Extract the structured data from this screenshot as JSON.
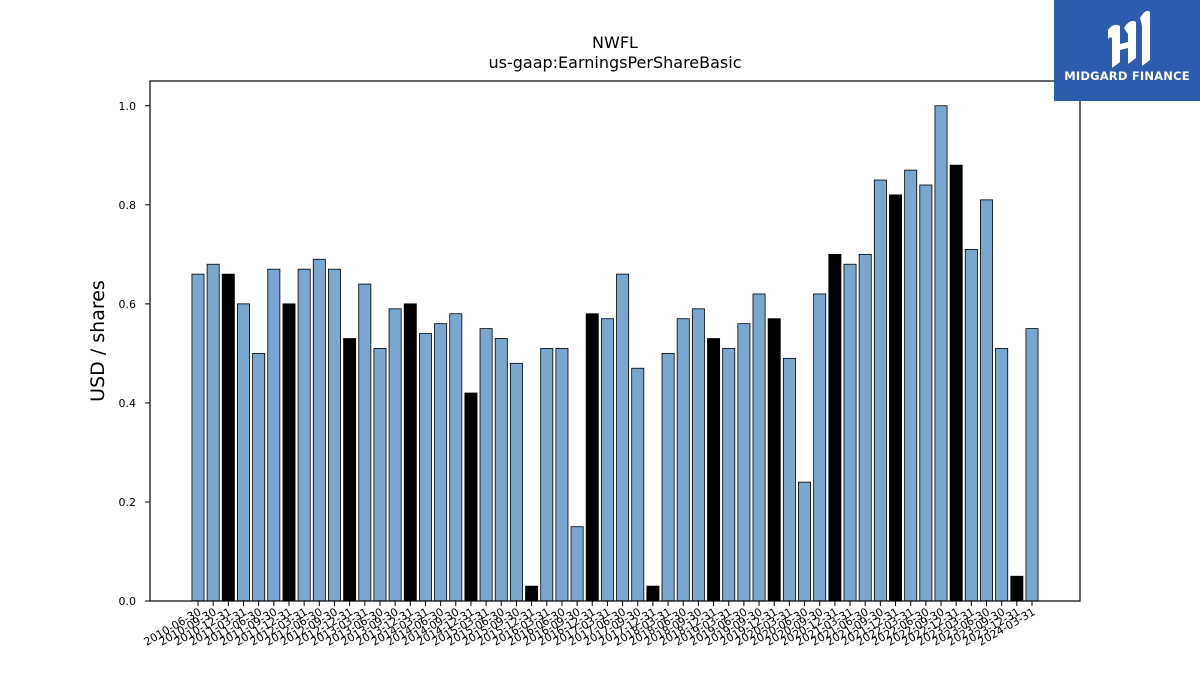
{
  "logo": {
    "text": "MIDGARD FINANCE",
    "background": "#2b5cae"
  },
  "colors": {
    "bar_primary": "#7aa7cf",
    "bar_alternate": "#000000",
    "edge": "#000000"
  },
  "chart_data": {
    "type": "bar",
    "title": "NWFL",
    "subtitle": "us-gaap:EarningsPerShareBasic",
    "xlabel": "",
    "ylabel": "USD / shares",
    "ylim": [
      0,
      1.05
    ],
    "yticks": [
      "0.0",
      "0.2",
      "0.4",
      "0.6",
      "0.8",
      "1.0"
    ],
    "grid": false,
    "categories": [
      "2010-06-30",
      "2010-09-30",
      "2010-12-31",
      "2011-03-31",
      "2011-06-30",
      "2011-09-30",
      "2011-12-31",
      "2012-03-31",
      "2012-06-30",
      "2012-09-30",
      "2012-12-31",
      "2013-03-31",
      "2013-06-30",
      "2013-09-30",
      "2013-12-31",
      "2014-03-31",
      "2014-06-30",
      "2014-09-30",
      "2014-12-31",
      "2015-03-31",
      "2015-06-30",
      "2015-09-30",
      "2015-12-31",
      "2016-03-31",
      "2016-06-30",
      "2016-09-30",
      "2016-12-31",
      "2017-03-31",
      "2017-06-30",
      "2017-09-30",
      "2017-12-31",
      "2018-03-31",
      "2018-06-30",
      "2018-09-30",
      "2018-12-31",
      "2019-03-31",
      "2019-06-30",
      "2019-09-30",
      "2019-12-31",
      "2020-03-31",
      "2020-06-30",
      "2020-09-30",
      "2020-12-31",
      "2021-03-31",
      "2021-06-30",
      "2021-09-30",
      "2021-12-31",
      "2022-03-31",
      "2022-06-30",
      "2022-09-30",
      "2022-12-31",
      "2023-03-31",
      "2023-06-30",
      "2023-09-30",
      "2023-12-31",
      "2024-03-31"
    ],
    "values": [
      0.66,
      0.68,
      0.66,
      0.6,
      0.5,
      0.67,
      0.6,
      0.67,
      0.69,
      0.67,
      0.53,
      0.64,
      0.51,
      0.59,
      0.6,
      0.54,
      0.56,
      0.58,
      0.42,
      0.55,
      0.53,
      0.48,
      0.03,
      0.51,
      0.51,
      0.15,
      0.58,
      0.57,
      0.66,
      0.47,
      0.03,
      0.5,
      0.57,
      0.59,
      0.53,
      0.51,
      0.56,
      0.62,
      0.57,
      0.49,
      0.24,
      0.62,
      0.7,
      0.68,
      0.7,
      0.85,
      0.82,
      0.87,
      0.84,
      1.0,
      0.88,
      0.71,
      0.81,
      0.51,
      0.05,
      0.55
    ],
    "highlight": [
      false,
      false,
      true,
      false,
      false,
      false,
      true,
      false,
      false,
      false,
      true,
      false,
      false,
      false,
      true,
      false,
      false,
      false,
      true,
      false,
      false,
      false,
      true,
      false,
      false,
      false,
      true,
      false,
      false,
      false,
      true,
      false,
      false,
      false,
      true,
      false,
      false,
      false,
      true,
      false,
      false,
      false,
      true,
      false,
      false,
      false,
      true,
      false,
      false,
      false,
      true,
      false,
      false,
      false,
      true,
      false
    ]
  }
}
